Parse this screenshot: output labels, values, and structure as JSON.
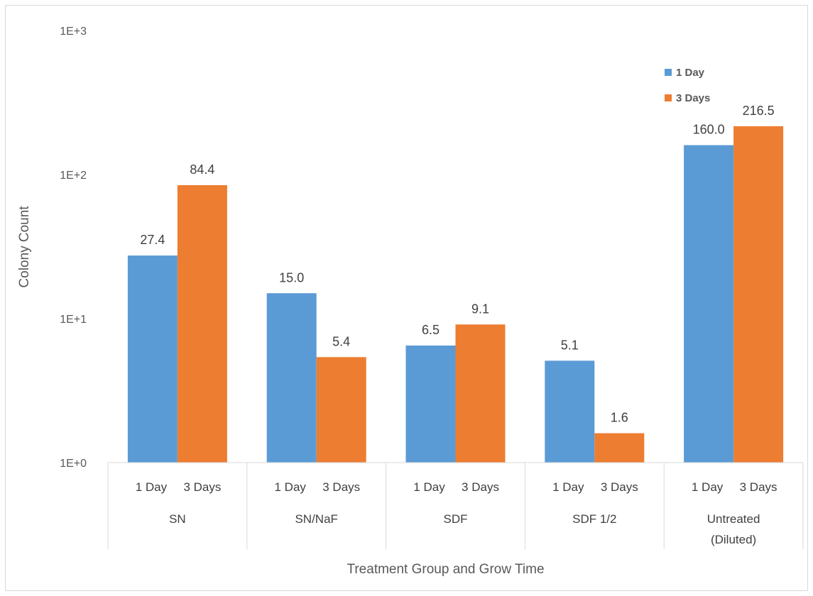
{
  "chart_data": {
    "type": "bar",
    "title": "",
    "xlabel": "Treatment Group and Grow Time",
    "ylabel": "Colony Count",
    "yscale": "log",
    "ylim": [
      1,
      1000
    ],
    "yticks": [
      "1E+0",
      "1E+1",
      "1E+2",
      "1E+3"
    ],
    "grid": false,
    "legend_position": "top-right",
    "categories": [
      "SN",
      "SN/NaF",
      "SDF",
      "SDF 1/2",
      "Untreated (Diluted)"
    ],
    "category_lines": [
      [
        "SN"
      ],
      [
        "SN/NaF"
      ],
      [
        "SDF"
      ],
      [
        "SDF 1/2"
      ],
      [
        "Untreated",
        "(Diluted)"
      ]
    ],
    "sub_labels": [
      "1 Day",
      "3 Days"
    ],
    "series": [
      {
        "name": "1 Day",
        "color": "#5b9bd5",
        "values": [
          27.4,
          15.0,
          6.5,
          5.1,
          160.0
        ],
        "labels": [
          "27.4",
          "15.0",
          "6.5",
          "5.1",
          "160.0"
        ]
      },
      {
        "name": "3 Days",
        "color": "#ed7d31",
        "values": [
          84.4,
          5.4,
          9.1,
          1.6,
          216.5
        ],
        "labels": [
          "84.4",
          "5.4",
          "9.1",
          "1.6",
          "216.5"
        ]
      }
    ]
  }
}
